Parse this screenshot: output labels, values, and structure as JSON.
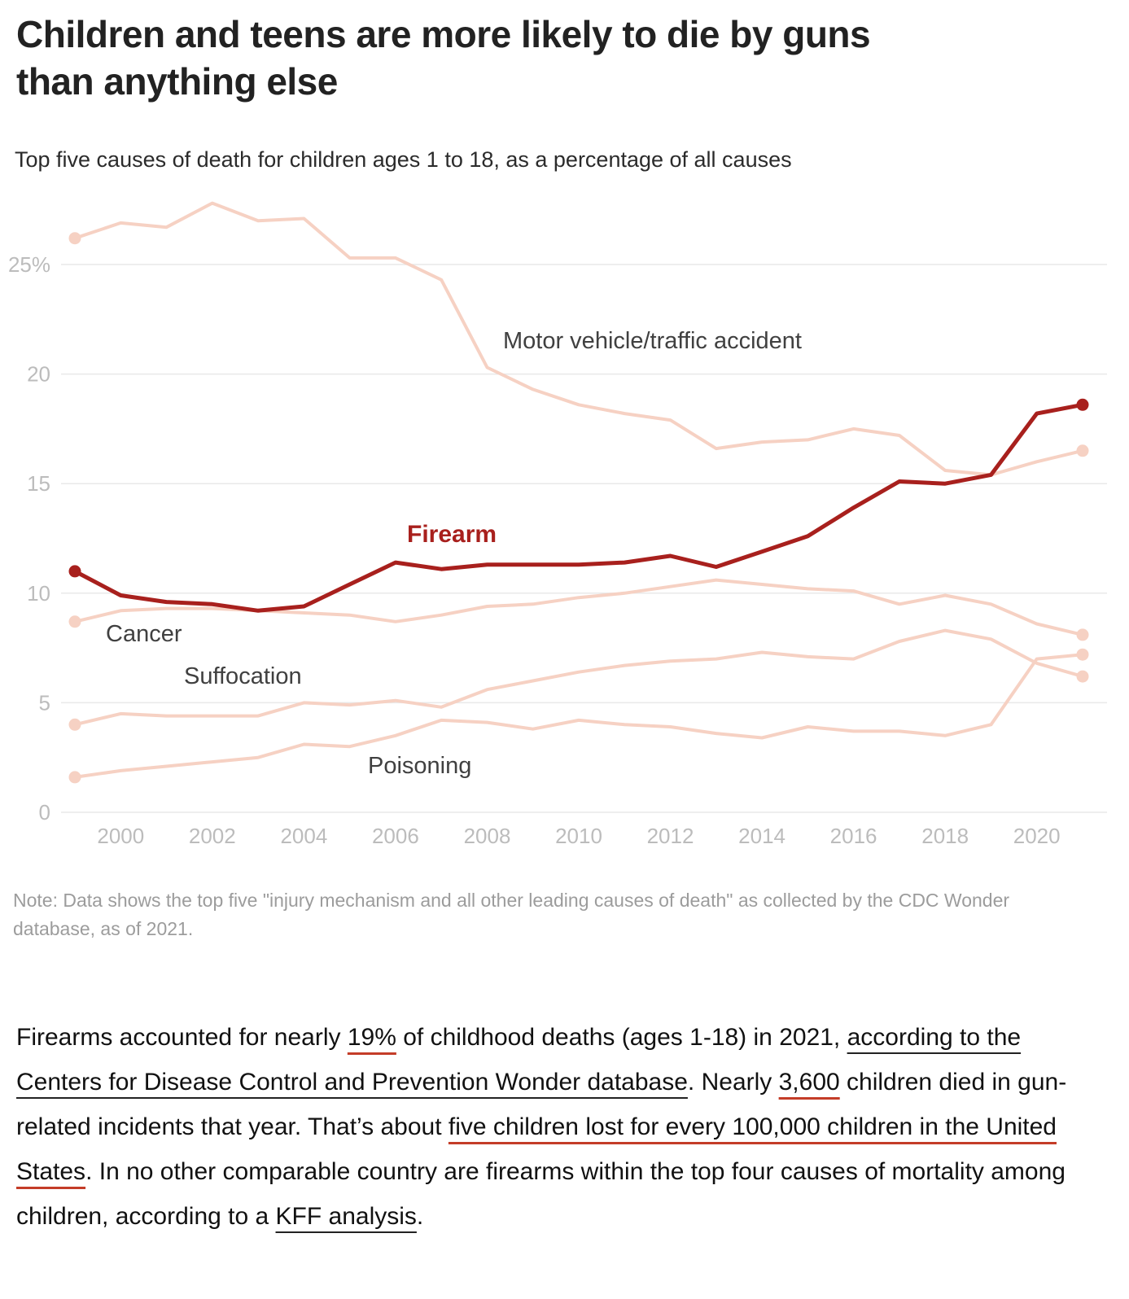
{
  "header": {
    "title_line1": "Children and teens are more likely to die by guns",
    "title_line2": "than anything else",
    "subtitle": "Top five causes of death for children ages 1 to 18, as a percentage of all causes"
  },
  "chart_data": {
    "type": "line",
    "x": [
      1999,
      2000,
      2001,
      2002,
      2003,
      2004,
      2005,
      2006,
      2007,
      2008,
      2009,
      2010,
      2011,
      2012,
      2013,
      2014,
      2015,
      2016,
      2017,
      2018,
      2019,
      2020,
      2021
    ],
    "ylim": [
      0,
      25
    ],
    "yticks": [
      {
        "v": 0,
        "label": "0"
      },
      {
        "v": 5,
        "label": "5"
      },
      {
        "v": 10,
        "label": "10"
      },
      {
        "v": 15,
        "label": "15"
      },
      {
        "v": 20,
        "label": "20"
      },
      {
        "v": 25,
        "label": "25%"
      }
    ],
    "xticks": [
      2000,
      2002,
      2004,
      2006,
      2008,
      2010,
      2012,
      2014,
      2016,
      2018,
      2020
    ],
    "grid": true,
    "legend": "inline-labels",
    "series": [
      {
        "key": "motor",
        "name": "Motor vehicle/traffic accident",
        "color": "#f6d1c3",
        "values": [
          26.2,
          26.9,
          26.7,
          27.8,
          27.0,
          27.1,
          25.3,
          25.3,
          24.3,
          20.3,
          19.3,
          18.6,
          18.2,
          17.9,
          16.6,
          16.9,
          17.0,
          17.5,
          17.2,
          15.6,
          15.4,
          16.0,
          16.5
        ]
      },
      {
        "key": "cancer",
        "name": "Cancer",
        "color": "#f6d1c3",
        "values": [
          8.7,
          9.2,
          9.3,
          9.3,
          9.2,
          9.1,
          9.0,
          8.7,
          9.0,
          9.4,
          9.5,
          9.8,
          10.0,
          10.3,
          10.6,
          10.4,
          10.2,
          10.1,
          9.5,
          9.9,
          9.5,
          8.6,
          8.1
        ]
      },
      {
        "key": "suffocation",
        "name": "Suffocation",
        "color": "#f6d1c3",
        "values": [
          4.0,
          4.5,
          4.4,
          4.4,
          4.4,
          5.0,
          4.9,
          5.1,
          4.8,
          5.6,
          6.0,
          6.4,
          6.7,
          6.9,
          7.0,
          7.3,
          7.1,
          7.0,
          7.8,
          8.3,
          7.9,
          6.8,
          6.2
        ]
      },
      {
        "key": "poisoning",
        "name": "Poisoning",
        "color": "#f6d1c3",
        "values": [
          1.6,
          1.9,
          2.1,
          2.3,
          2.5,
          3.1,
          3.0,
          3.5,
          4.2,
          4.1,
          3.8,
          4.2,
          4.0,
          3.9,
          3.6,
          3.4,
          3.9,
          3.7,
          3.7,
          3.5,
          4.0,
          7.0,
          7.2
        ]
      },
      {
        "key": "firearm",
        "name": "Firearm",
        "color": "#a8201d",
        "values": [
          11.0,
          9.9,
          9.6,
          9.5,
          9.2,
          9.4,
          10.4,
          11.4,
          11.1,
          11.3,
          11.3,
          11.3,
          11.4,
          11.7,
          11.2,
          11.9,
          12.6,
          13.9,
          15.1,
          15.0,
          15.4,
          18.2,
          18.6
        ]
      }
    ],
    "annotations": [
      {
        "text": "Motor vehicle/traffic accident"
      },
      {
        "text": "Firearm"
      },
      {
        "text": "Cancer"
      },
      {
        "text": "Suffocation"
      },
      {
        "text": "Poisoning"
      }
    ]
  },
  "note": "Note: Data shows the top five \"injury mechanism and all other leading causes of death\" as collected by the CDC Wonder database, as of 2021.",
  "paragraph": {
    "segments": [
      {
        "text": "Firearms accounted for nearly ",
        "style": "plain"
      },
      {
        "text": "19%",
        "style": "link-red"
      },
      {
        "text": " of childhood deaths (ages 1-18) in 2021, ",
        "style": "plain"
      },
      {
        "text": "according to the Centers for Disease Control and Prevention Wonder database",
        "style": "link-dark"
      },
      {
        "text": ". Nearly ",
        "style": "plain"
      },
      {
        "text": "3,600",
        "style": "link-red"
      },
      {
        "text": " children died in gun-related incidents that year. That’s about ",
        "style": "plain"
      },
      {
        "text": "five children lost for every 100,000 children in the United States",
        "style": "link-red"
      },
      {
        "text": ". In no other comparable country are firearms within the top four causes of mortality among children, according to a ",
        "style": "plain"
      },
      {
        "text": "KFF analysis",
        "style": "link-dark"
      },
      {
        "text": ".",
        "style": "plain"
      }
    ]
  }
}
